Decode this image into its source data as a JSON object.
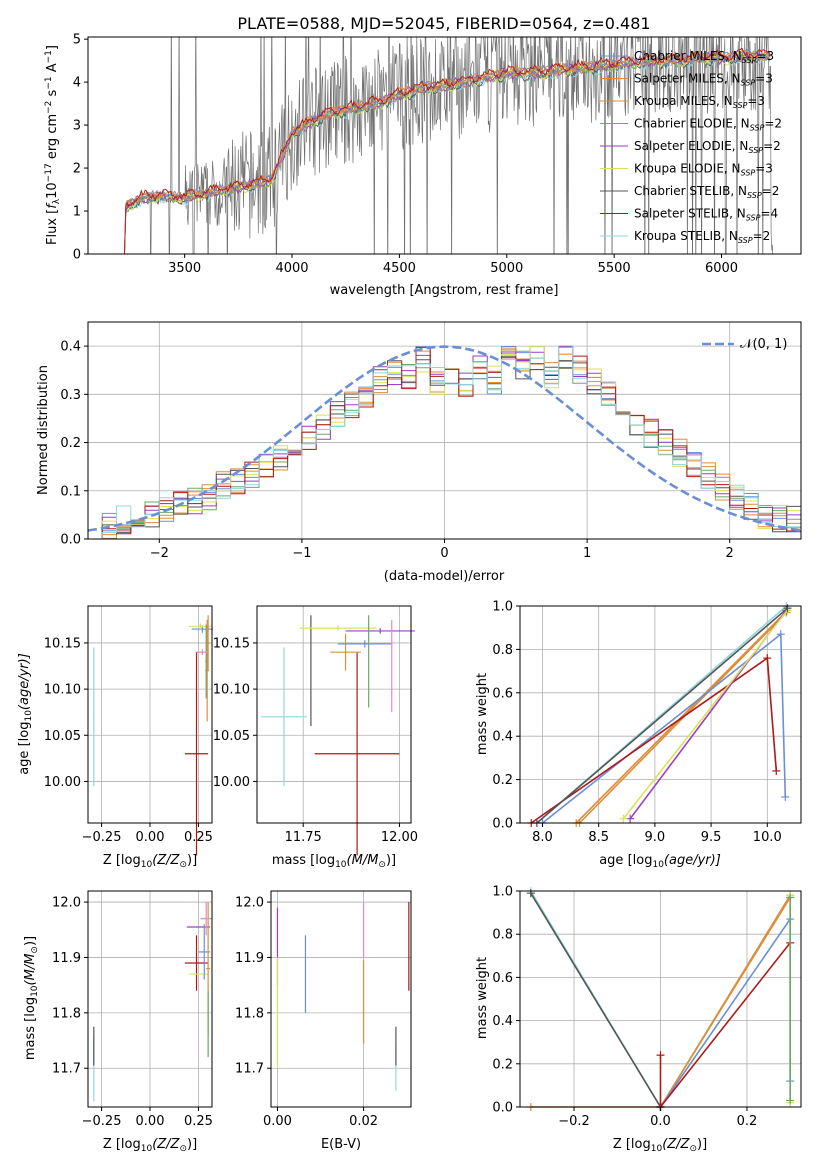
{
  "colors": {
    "Chabrier MILES": "#6b8fd6",
    "Salpeter MILES": "#e7893a",
    "Kroupa MILES": "#d8903a",
    "Chabrier ELODIE": "#6aa86a",
    "Salpeter ELODIE": "#a23cc0",
    "Kroupa ELODIE": "#d9e35a",
    "Chabrier STELIB": "#555555",
    "Salpeter STELIB": "#b01818",
    "Kroupa STELIB": "#8ed8dc",
    "data": "#707070",
    "extra_pink": "#e88ab9"
  },
  "chart_data": [
    {
      "id": "spectrum",
      "type": "line",
      "title": "PLATE=0588, MJD=52045, FIBERID=0564, z=0.481",
      "xlabel": "wavelength [Angstrom, rest frame]",
      "ylabel_main": "Flux [",
      "ylabel_f": "f",
      "ylabel_lambda": "λ",
      "ylabel_rest": "10",
      "ylabel_exp1": "−17",
      "ylabel_unit": " erg cm",
      "ylabel_exp2": "−2",
      "ylabel_s": " s",
      "ylabel_exp3": "−1",
      "ylabel_A": " A",
      "ylabel_exp4": "−1",
      "ylabel_close": "]",
      "xlim": [
        3050,
        6370
      ],
      "ylim": [
        0,
        5.05
      ],
      "xticks": [
        "3500",
        "4000",
        "4500",
        "5000",
        "5500",
        "6000"
      ],
      "xtick_values": [
        3500,
        4000,
        4500,
        5000,
        5500,
        6000
      ],
      "yticks": [
        "0",
        "1",
        "2",
        "3",
        "4",
        "5"
      ],
      "ytick_values": [
        0,
        1,
        2,
        3,
        4,
        5
      ],
      "legend_position": "top-right",
      "legend": [
        {
          "name": "Chabrier MILES",
          "nssp": "3"
        },
        {
          "name": "Salpeter MILES",
          "nssp": "3"
        },
        {
          "name": "Kroupa MILES",
          "nssp": "3"
        },
        {
          "name": "Chabrier ELODIE",
          "nssp": "2"
        },
        {
          "name": "Salpeter ELODIE",
          "nssp": "2"
        },
        {
          "name": "Kroupa ELODIE",
          "nssp": "3"
        },
        {
          "name": "Chabrier STELIB",
          "nssp": "2"
        },
        {
          "name": "Salpeter STELIB",
          "nssp": "4"
        },
        {
          "name": "Kroupa STELIB",
          "nssp": "2"
        }
      ],
      "model_curve": {
        "x": [
          3220,
          3225,
          3300,
          3400,
          3500,
          3600,
          3700,
          3800,
          3900,
          3950,
          4000,
          4100,
          4200,
          4300,
          4400,
          4500,
          4600,
          4700,
          4800,
          4900,
          5000,
          5100,
          5200,
          5300,
          5400,
          5500,
          5600,
          5700,
          5800,
          5900,
          6000,
          6100,
          6200,
          6230
        ],
        "y": [
          0,
          1.1,
          1.3,
          1.35,
          1.3,
          1.4,
          1.5,
          1.6,
          1.7,
          2.2,
          2.8,
          3.1,
          3.3,
          3.4,
          3.5,
          3.7,
          3.85,
          3.9,
          4.0,
          4.1,
          4.2,
          4.2,
          4.25,
          4.3,
          4.35,
          4.4,
          4.45,
          4.5,
          4.5,
          4.55,
          4.55,
          4.6,
          4.6,
          4.6
        ]
      }
    },
    {
      "id": "residuals",
      "type": "line",
      "xlabel": "(data-model)/error",
      "ylabel": "Normed distribution",
      "xlim": [
        -2.5,
        2.5
      ],
      "ylim": [
        0,
        0.45
      ],
      "xticks": [
        "−2",
        "−1",
        "0",
        "1",
        "2"
      ],
      "xtick_values": [
        -2,
        -1,
        0,
        1,
        2
      ],
      "yticks": [
        "0.0",
        "0.1",
        "0.2",
        "0.3",
        "0.4"
      ],
      "ytick_values": [
        0,
        0.1,
        0.2,
        0.3,
        0.4
      ],
      "legend_position": "top-right",
      "legend_label": "𝒩(0, 1)",
      "gaussian": {
        "mu": 0,
        "sigma": 1
      },
      "bin_width": 0.1,
      "base_histogram": {
        "x": [
          -2.5,
          -2.4,
          -2.3,
          -2.2,
          -2.1,
          -2.0,
          -1.9,
          -1.8,
          -1.7,
          -1.6,
          -1.5,
          -1.4,
          -1.3,
          -1.2,
          -1.1,
          -1.0,
          -0.9,
          -0.8,
          -0.7,
          -0.6,
          -0.5,
          -0.4,
          -0.3,
          -0.2,
          -0.1,
          0.0,
          0.1,
          0.2,
          0.3,
          0.4,
          0.5,
          0.6,
          0.7,
          0.8,
          0.9,
          1.0,
          1.1,
          1.2,
          1.3,
          1.4,
          1.5,
          1.6,
          1.7,
          1.8,
          1.9,
          2.0,
          2.1,
          2.2,
          2.3,
          2.4
        ],
        "y": [
          0.02,
          0.03,
          0.04,
          0.05,
          0.05,
          0.06,
          0.07,
          0.08,
          0.09,
          0.11,
          0.12,
          0.13,
          0.15,
          0.17,
          0.19,
          0.21,
          0.23,
          0.26,
          0.28,
          0.3,
          0.33,
          0.35,
          0.34,
          0.37,
          0.33,
          0.34,
          0.32,
          0.36,
          0.33,
          0.38,
          0.36,
          0.37,
          0.34,
          0.38,
          0.35,
          0.33,
          0.3,
          0.27,
          0.24,
          0.22,
          0.2,
          0.18,
          0.15,
          0.13,
          0.11,
          0.09,
          0.07,
          0.05,
          0.04,
          0.04
        ]
      }
    },
    {
      "id": "age-vs-Z",
      "type": "scatter",
      "xlabel": "Z [log",
      "xlabel_sub": "10",
      "xlabel_rest": "(Z/Z",
      "xlabel_sun": "⊙",
      "xlabel_close": ")]",
      "ylabel": "age  [log",
      "ylabel_sub": "10",
      "ylabel_rest": "(age/yr)]",
      "xlim": [
        -0.32,
        0.32
      ],
      "ylim": [
        9.955,
        10.19
      ],
      "xticks": [
        "−0.25",
        "0.00",
        "0.25"
      ],
      "xtick_values": [
        -0.25,
        0,
        0.25
      ],
      "yticks": [
        "10.00",
        "10.05",
        "10.10",
        "10.15"
      ],
      "ytick_values": [
        10.0,
        10.05,
        10.1,
        10.15
      ],
      "errorbars": [
        {
          "series": "Kroupa STELIB",
          "x": -0.29,
          "y": 10.07,
          "xerr": 0.002,
          "yerr": 0.075
        },
        {
          "series": "Salpeter STELIB",
          "x": 0.24,
          "y": 10.03,
          "xerr": 0.06,
          "yerr": 0.11
        },
        {
          "series": "Chabrier MILES",
          "x": 0.27,
          "y": 10.165,
          "xerr": 0.055,
          "yerr": 0.004
        },
        {
          "series": "Kroupa ELODIE",
          "x": 0.26,
          "y": 10.168,
          "xerr": 0.06,
          "yerr": 0.003
        },
        {
          "series": "Salpeter MILES",
          "x": 0.295,
          "y": 10.12,
          "xerr": 0.01,
          "yerr": 0.055
        },
        {
          "series": "Chabrier ELODIE",
          "x": 0.29,
          "y": 10.13,
          "xerr": 0.005,
          "yerr": 0.04
        },
        {
          "series": "Kroupa MILES",
          "x": 0.3,
          "y": 10.15,
          "xerr": 0.01,
          "yerr": 0.03
        },
        {
          "series": "extra_pink",
          "x": 0.27,
          "y": 10.14,
          "xerr": 0.03,
          "yerr": 0.003
        }
      ]
    },
    {
      "id": "age-vs-mass",
      "type": "scatter",
      "xlabel": "mass [log",
      "xlabel_sub": "10",
      "xlabel_rest": "(M/M",
      "xlabel_sun": "⊙",
      "xlabel_close": ")]",
      "xlim": [
        11.63,
        12.03
      ],
      "ylim": [
        9.955,
        10.19
      ],
      "xticks": [
        "11.75",
        "12.00"
      ],
      "xtick_values": [
        11.75,
        12.0
      ],
      "yticks": [
        "10.00",
        "10.05",
        "10.10",
        "10.15"
      ],
      "ytick_values": [
        10.0,
        10.05,
        10.1,
        10.15
      ],
      "errorbars": [
        {
          "series": "Kroupa STELIB",
          "x": 11.7,
          "y": 10.07,
          "xerr": 0.06,
          "yerr": 0.075
        },
        {
          "series": "Chabrier STELIB",
          "x": 11.77,
          "y": 10.12,
          "xerr": 0.0,
          "yerr": 0.06
        },
        {
          "series": "Salpeter STELIB",
          "x": 11.89,
          "y": 10.03,
          "xerr": 0.11,
          "yerr": 0.11
        },
        {
          "series": "Kroupa ELODIE",
          "x": 11.84,
          "y": 10.166,
          "xerr": 0.1,
          "yerr": 0.003
        },
        {
          "series": "Kroupa MILES",
          "x": 11.86,
          "y": 10.14,
          "xerr": 0.04,
          "yerr": 0.02
        },
        {
          "series": "Chabrier MILES",
          "x": 11.91,
          "y": 10.149,
          "xerr": 0.07,
          "yerr": 0.004
        },
        {
          "series": "Salpeter ELODIE",
          "x": 11.95,
          "y": 10.163,
          "xerr": 0.09,
          "yerr": 0.003
        },
        {
          "series": "extra_pink",
          "x": 11.98,
          "y": 10.125,
          "xerr": 0.0,
          "yerr": 0.05
        },
        {
          "series": "Chabrier ELODIE",
          "x": 11.92,
          "y": 10.13,
          "xerr": 0.0,
          "yerr": 0.05
        }
      ]
    },
    {
      "id": "massweight-vs-age",
      "type": "line",
      "xlabel": "age  [log",
      "xlabel_sub": "10",
      "xlabel_rest": "(age/yr)]",
      "ylabel": "mass weight",
      "xlim": [
        7.8,
        10.3
      ],
      "ylim": [
        0,
        1
      ],
      "xticks": [
        "8.0",
        "8.5",
        "9.0",
        "9.5",
        "10.0"
      ],
      "xtick_values": [
        8.0,
        8.5,
        9.0,
        9.5,
        10.0
      ],
      "yticks": [
        "0.0",
        "0.2",
        "0.4",
        "0.6",
        "0.8",
        "1.0"
      ],
      "ytick_values": [
        0,
        0.2,
        0.4,
        0.6,
        0.8,
        1.0
      ],
      "lines": [
        {
          "series": "Kroupa STELIB",
          "x": [
            7.95,
            10.17
          ],
          "y": [
            0.0,
            1.0
          ]
        },
        {
          "series": "Salpeter MILES",
          "x": [
            8.3,
            10.18
          ],
          "y": [
            0.0,
            0.98
          ]
        },
        {
          "series": "Kroupa MILES",
          "x": [
            8.33,
            10.17
          ],
          "y": [
            0.0,
            0.97
          ]
        },
        {
          "series": "Chabrier MILES",
          "x": [
            8.0,
            10.12,
            10.16
          ],
          "y": [
            0.0,
            0.87,
            0.12
          ]
        },
        {
          "series": "Salpeter STELIB",
          "x": [
            7.9,
            10.0,
            10.08
          ],
          "y": [
            0.0,
            0.76,
            0.24
          ]
        },
        {
          "series": "Salpeter ELODIE",
          "x": [
            8.78,
            10.17
          ],
          "y": [
            0.02,
            0.98
          ]
        },
        {
          "series": "Kroupa ELODIE",
          "x": [
            8.72,
            10.18
          ],
          "y": [
            0.02,
            0.98
          ]
        },
        {
          "series": "Chabrier STELIB",
          "x": [
            7.95,
            10.18
          ],
          "y": [
            0.0,
            0.99
          ]
        }
      ]
    },
    {
      "id": "mass-vs-Z",
      "type": "scatter",
      "xlabel": "Z [log",
      "xlabel_sub": "10",
      "xlabel_rest": "(Z/Z",
      "xlabel_sun": "⊙",
      "xlabel_close": ")]",
      "ylabel": "mass [log",
      "ylabel_sub": "10",
      "ylabel_rest": "(M/M",
      "ylabel_sun": "⊙",
      "ylabel_close": ")]",
      "xlim": [
        -0.32,
        0.32
      ],
      "ylim": [
        11.63,
        12.02
      ],
      "xticks": [
        "−0.25",
        "0.00",
        "0.25"
      ],
      "xtick_values": [
        -0.25,
        0,
        0.25
      ],
      "yticks": [
        "11.7",
        "11.8",
        "11.9",
        "12.0"
      ],
      "ytick_values": [
        11.7,
        11.8,
        11.9,
        12.0
      ],
      "errorbars": [
        {
          "series": "Kroupa STELIB",
          "x": -0.29,
          "y": 11.7,
          "xerr": 0.002,
          "yerr": 0.06
        },
        {
          "series": "Chabrier STELIB",
          "x": -0.29,
          "y": 11.74,
          "xerr": 0.0,
          "yerr": 0.035
        },
        {
          "series": "Salpeter STELIB",
          "x": 0.24,
          "y": 11.89,
          "xerr": 0.06,
          "yerr": 0.05
        },
        {
          "series": "Kroupa ELODIE",
          "x": 0.25,
          "y": 11.87,
          "xerr": 0.05,
          "yerr": 0.0
        },
        {
          "series": "Salpeter ELODIE",
          "x": 0.25,
          "y": 11.955,
          "xerr": 0.06,
          "yerr": 0.0
        },
        {
          "series": "Chabrier MILES",
          "x": 0.28,
          "y": 11.91,
          "xerr": 0.03,
          "yerr": 0.05
        },
        {
          "series": "Kroupa MILES",
          "x": 0.3,
          "y": 11.88,
          "xerr": 0.01,
          "yerr": 0.12
        },
        {
          "series": "extra_pink",
          "x": 0.29,
          "y": 11.97,
          "xerr": 0.03,
          "yerr": 0.03
        },
        {
          "series": "Chabrier ELODIE",
          "x": 0.3,
          "y": 11.78,
          "xerr": 0.0,
          "yerr": 0.06
        }
      ]
    },
    {
      "id": "mass-vs-EBV",
      "type": "scatter",
      "xlabel": "E(B-V)",
      "xlim": [
        -0.0015,
        0.031
      ],
      "ylim": [
        11.63,
        12.02
      ],
      "xticks": [
        "0.00",
        "0.02"
      ],
      "xtick_values": [
        0.0,
        0.02
      ],
      "yticks": [
        "11.7",
        "11.8",
        "11.9",
        "12.0"
      ],
      "ytick_values": [
        11.7,
        11.8,
        11.9,
        12.0
      ],
      "errorbars": [
        {
          "series": "Salpeter ELODIE",
          "x": 0.0,
          "y": 11.92,
          "xerr": 0.0,
          "yerr": 0.07
        },
        {
          "series": "Kroupa ELODIE",
          "x": 0.0,
          "y": 11.8,
          "xerr": 0.0,
          "yerr": 0.1
        },
        {
          "series": "Chabrier MILES",
          "x": 0.0065,
          "y": 11.87,
          "xerr": 0.0,
          "yerr": 0.07
        },
        {
          "series": "extra_pink",
          "x": 0.02,
          "y": 11.95,
          "xerr": 0.0,
          "yerr": 0.05
        },
        {
          "series": "Salpeter MILES",
          "x": 0.02,
          "y": 11.82,
          "xerr": 0.0,
          "yerr": 0.075
        },
        {
          "series": "Kroupa STELIB",
          "x": 0.0275,
          "y": 11.7,
          "xerr": 0.0,
          "yerr": 0.04
        },
        {
          "series": "Chabrier STELIB",
          "x": 0.0275,
          "y": 11.74,
          "xerr": 0.0,
          "yerr": 0.035
        },
        {
          "series": "Salpeter STELIB",
          "x": 0.0305,
          "y": 11.92,
          "xerr": 0.0,
          "yerr": 0.08
        }
      ]
    },
    {
      "id": "massweight-vs-Z",
      "type": "line",
      "xlabel": "Z [log",
      "xlabel_sub": "10",
      "xlabel_rest": "(Z/Z",
      "xlabel_sun": "⊙",
      "xlabel_close": ")]",
      "ylabel": "mass weight",
      "xlim": [
        -0.325,
        0.325
      ],
      "ylim": [
        0,
        1
      ],
      "xticks": [
        "−0.2",
        "0.0",
        "0.2"
      ],
      "xtick_values": [
        -0.2,
        0.0,
        0.2
      ],
      "yticks": [
        "0.0",
        "0.2",
        "0.4",
        "0.6",
        "0.8",
        "1.0"
      ],
      "ytick_values": [
        0,
        0.2,
        0.4,
        0.6,
        0.8,
        1.0
      ],
      "lines": [
        {
          "series": "Kroupa STELIB",
          "x": [
            -0.3,
            0.0
          ],
          "y": [
            1.0,
            0.0
          ]
        },
        {
          "series": "Chabrier STELIB",
          "x": [
            -0.3,
            0.0
          ],
          "y": [
            0.99,
            0.0
          ]
        },
        {
          "series": "Salpeter MILES",
          "x": [
            -0.3,
            0.0,
            0.3
          ],
          "y": [
            0.0,
            0.0,
            0.98
          ]
        },
        {
          "series": "Kroupa MILES",
          "x": [
            0.0,
            0.3
          ],
          "y": [
            0.0,
            0.97
          ]
        },
        {
          "series": "Chabrier MILES",
          "x": [
            0.0,
            0.3,
            0.3
          ],
          "y": [
            0.0,
            0.87,
            0.12
          ]
        },
        {
          "series": "Salpeter STELIB",
          "x": [
            0.0,
            0.0,
            0.0,
            0.3
          ],
          "y": [
            0.24,
            0.0,
            0.0,
            0.76
          ]
        },
        {
          "series": "Kroupa ELODIE",
          "x": [
            0.3,
            0.3
          ],
          "y": [
            0.98,
            0.02
          ]
        },
        {
          "series": "Chabrier ELODIE",
          "x": [
            0.3,
            0.3
          ],
          "y": [
            0.97,
            0.03
          ]
        }
      ]
    }
  ]
}
